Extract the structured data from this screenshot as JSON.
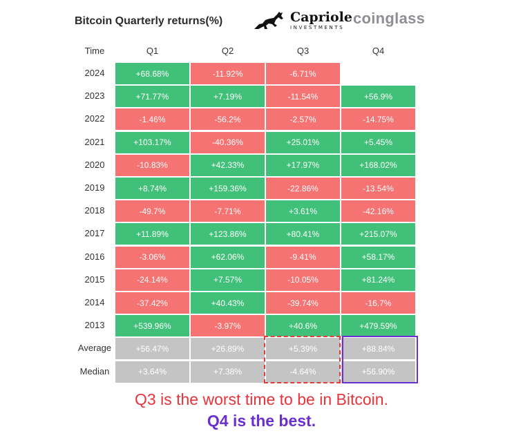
{
  "chart_data": {
    "type": "table",
    "title": "Bitcoin Quarterly returns(%)",
    "columns": [
      "Time",
      "Q1",
      "Q2",
      "Q3",
      "Q4"
    ],
    "rows": [
      {
        "label": "2024",
        "values": [
          "+68.68%",
          "-11.92%",
          "-6.71%",
          ""
        ]
      },
      {
        "label": "2023",
        "values": [
          "+71.77%",
          "+7.19%",
          "-11.54%",
          "+56.9%"
        ]
      },
      {
        "label": "2022",
        "values": [
          "-1.46%",
          "-56.2%",
          "-2.57%",
          "-14.75%"
        ]
      },
      {
        "label": "2021",
        "values": [
          "+103.17%",
          "-40.36%",
          "+25.01%",
          "+5.45%"
        ]
      },
      {
        "label": "2020",
        "values": [
          "-10.83%",
          "+42.33%",
          "+17.97%",
          "+168.02%"
        ]
      },
      {
        "label": "2019",
        "values": [
          "+8.74%",
          "+159.36%",
          "-22.86%",
          "-13.54%"
        ]
      },
      {
        "label": "2018",
        "values": [
          "-49.7%",
          "-7.71%",
          "+3.61%",
          "-42.16%"
        ]
      },
      {
        "label": "2017",
        "values": [
          "+11.89%",
          "+123.86%",
          "+80.41%",
          "+215.07%"
        ]
      },
      {
        "label": "2016",
        "values": [
          "-3.06%",
          "+62.06%",
          "-9.41%",
          "+58.17%"
        ]
      },
      {
        "label": "2015",
        "values": [
          "-24.14%",
          "+7.57%",
          "-10.05%",
          "+81.24%"
        ]
      },
      {
        "label": "2014",
        "values": [
          "-37.42%",
          "+40.43%",
          "-39.74%",
          "-16.7%"
        ]
      },
      {
        "label": "2013",
        "values": [
          "+539.96%",
          "-3.97%",
          "+40.6%",
          "+479.59%"
        ]
      }
    ],
    "summary_rows": [
      {
        "label": "Average",
        "values": [
          "+56.47%",
          "+26.89%",
          "+5.39%",
          "+88.84%"
        ]
      },
      {
        "label": "Median",
        "values": [
          "+3.64%",
          "+7.38%",
          "-4.64%",
          "+56.90%"
        ]
      }
    ],
    "colors": {
      "positive": "#41c07a",
      "negative": "#f57373",
      "summary": "#c4c4c4"
    }
  },
  "branding": {
    "capriole_name": "Capriole",
    "capriole_sub": "INVESTMENTS",
    "capriole_icon": "horse-icon",
    "coinglass": "coinglass"
  },
  "annotations": {
    "worst": "Q3 is the worst time to be in Bitcoin.",
    "best": "Q4 is the best.",
    "worst_color": "#e8333a",
    "best_color": "#6b2fd1"
  }
}
